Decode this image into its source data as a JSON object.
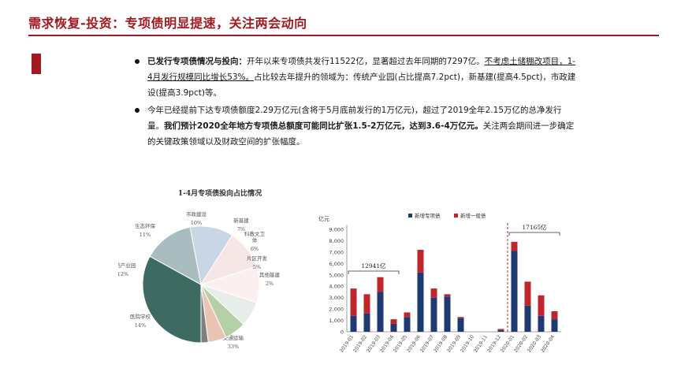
{
  "header": {
    "title": "需求恢复-投资：专项债明显提速，关注两会动向"
  },
  "theme": {
    "accent": "#a11a1f"
  },
  "bullets": [
    {
      "lead": "已发行专项债情况与投向：",
      "text1": "开年以来专项债共发行11522亿，显著超过去年同期的7297亿。",
      "underline": "不考虑土储棚改项目，1-4月发行规模同比增长53%。",
      "text2": "占比较去年提升的领域为：传统产业园(占比提高7.2pct)，新基建(提高4.5pct)，市政建设(提高3.9pct)等。"
    },
    {
      "text1": "今年已经提前下达专项债额度2.29万亿元(含将于5月底前发行的1万亿元)，超过了2019全年2.15万亿的总净发行量。",
      "bold": "我们预计2020全年地方专项债总额度可能同比扩张1.5-2万亿元，达到3.6-4万亿元。",
      "text2": "关注两会期间进一步确定的关键政策领域以及财政空间的扩张幅度。"
    }
  ],
  "chart_data": [
    {
      "type": "pie",
      "title": "1-4月专项债投向占比情况",
      "slices": [
        {
          "label": "交通运输",
          "value": 33,
          "pct": "33%",
          "color": "#3d6b62"
        },
        {
          "label": "医院学校",
          "value": 14,
          "pct": "14%",
          "color": "#a9bcbf"
        },
        {
          "label": "传统产业园",
          "value": 12,
          "pct": "12%",
          "color": "#c8d6e5"
        },
        {
          "label": "生态环保",
          "value": 11,
          "pct": "11%",
          "color": "#f6e6e6"
        },
        {
          "label": "市政建设",
          "value": 10,
          "pct": "10%",
          "color": "#fbefef"
        },
        {
          "label": "新基建",
          "value": 7,
          "pct": "7%",
          "color": "#e7eee9"
        },
        {
          "label": "科教文卫体",
          "value": 6,
          "pct": "6%",
          "color": "#b5d0a6"
        },
        {
          "label": "片区开发",
          "value": 5,
          "pct": "5%",
          "color": "#e9c4b5"
        },
        {
          "label": "其他基建",
          "value": 2,
          "pct": "2%",
          "color": "#7f7f7f"
        }
      ]
    },
    {
      "type": "bar",
      "ylabel": "亿元",
      "ylim": [
        0,
        9000
      ],
      "yticks": [
        "0",
        "1,000",
        "2,000",
        "3,000",
        "4,000",
        "5,000",
        "6,000",
        "7,000",
        "8,000",
        "9,000"
      ],
      "categories": [
        "2019-01",
        "2019-02",
        "2019-03",
        "2019-04",
        "2019-05",
        "2019-06",
        "2019-07",
        "2019-08",
        "2019-09",
        "2019-10",
        "2019-11",
        "2019-12",
        "2020-01",
        "2020-02",
        "2020-03",
        "2020-04"
      ],
      "series": [
        {
          "name": "新增专项债",
          "color": "#1f3a73",
          "values": [
            1400,
            1600,
            3500,
            700,
            1300,
            5200,
            3000,
            3100,
            1200,
            0,
            0,
            150,
            7100,
            2300,
            1400,
            1100
          ]
        },
        {
          "name": "新增一般债",
          "color": "#c0252b",
          "values": [
            2400,
            1700,
            1300,
            400,
            400,
            2000,
            800,
            200,
            100,
            0,
            0,
            100,
            800,
            2100,
            1800,
            700
          ]
        }
      ],
      "annotations": [
        {
          "text": "12941亿"
        },
        {
          "text": "17165亿"
        }
      ]
    }
  ]
}
